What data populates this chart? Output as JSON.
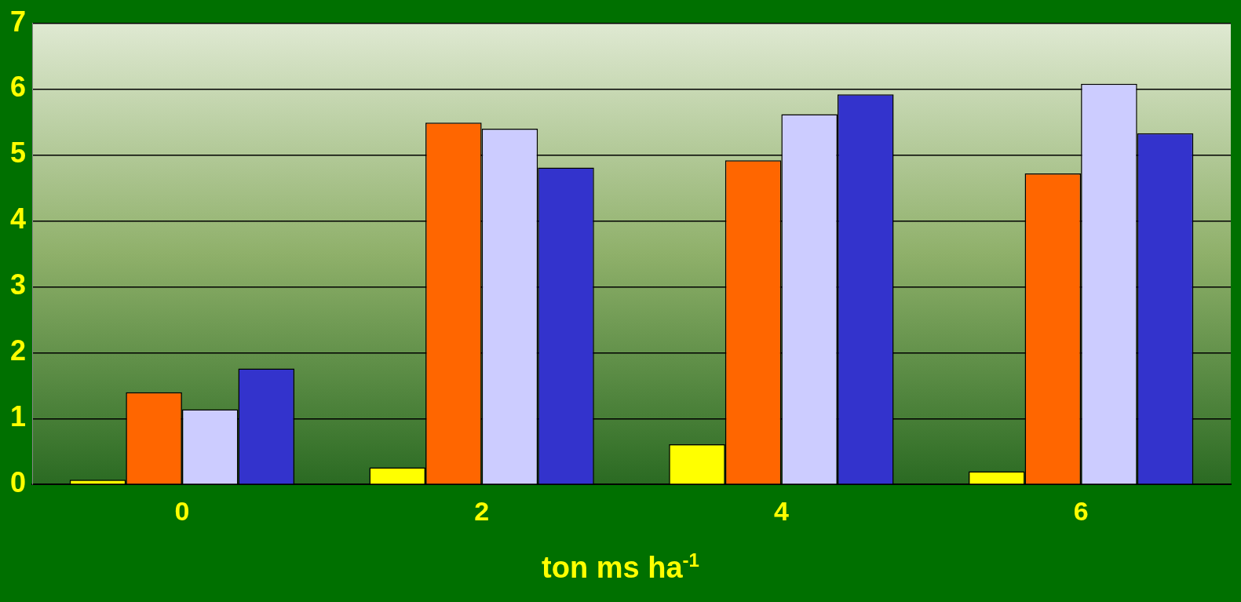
{
  "chart_data": {
    "type": "bar",
    "xlabel": "ton ms ha$^{-1}$",
    "categories": [
      "0",
      "2",
      "4",
      "6"
    ],
    "series": [
      {
        "color": "#ffff00",
        "values": [
          0.07,
          0.26,
          0.61,
          0.2
        ]
      },
      {
        "color": "#ff6600",
        "values": [
          1.4,
          5.49,
          4.92,
          4.72
        ]
      },
      {
        "color": "#ccccff",
        "values": [
          1.14,
          5.4,
          5.62,
          6.08
        ]
      },
      {
        "color": "#3333cc",
        "values": [
          1.76,
          4.81,
          5.92,
          5.33
        ]
      }
    ],
    "ylim": [
      0,
      7
    ],
    "yticks": [
      0,
      1,
      2,
      3,
      4,
      5,
      6,
      7
    ],
    "grid": "y",
    "legend": false
  }
}
